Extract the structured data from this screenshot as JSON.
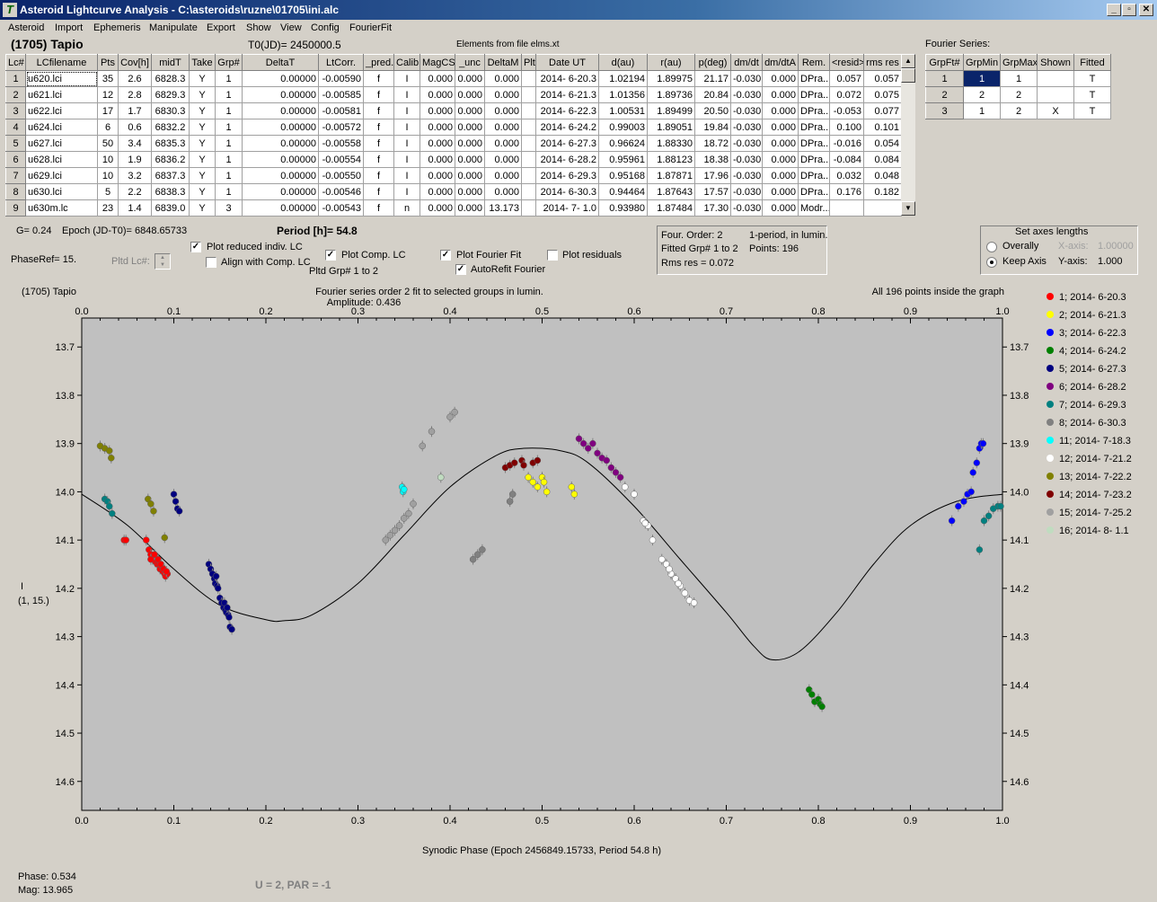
{
  "window": {
    "title": "Asteroid Lightcurve Analysis - C:\\asteroids\\ruzne\\01705\\ini.alc",
    "min": "_",
    "max": "▫",
    "close": "✕"
  },
  "menu": [
    "Asteroid",
    "Import",
    "Ephemeris",
    "Manipulate",
    "Export",
    "Show",
    "View",
    "Config",
    "FourierFit"
  ],
  "header": {
    "object": "(1705) Tapio",
    "t0": "T0(JD)= 2450000.5",
    "elements": "Elements from file elms.xt",
    "fourier_title": "Fourier Series:"
  },
  "lc_table": {
    "columns": [
      "Lc#",
      "LCfilename",
      "Pts",
      "Cov[h]",
      "midT",
      "Take",
      "Grp#",
      "DeltaT",
      "LtCorr.",
      "_pred.",
      "Calib.",
      "MagCS",
      "_unc",
      "DeltaM",
      "Plt",
      "Date UT",
      "d(au)",
      "r(au)",
      "p(deg)",
      "dm/dt",
      "dm/dtA",
      "Rem.",
      "<resid>",
      "rms res"
    ],
    "rows": [
      [
        "1",
        "u620.lci",
        "35",
        "2.6",
        "6828.3",
        "Y",
        "1",
        "0.00000",
        "-0.00590",
        "f",
        "I",
        "0.000",
        "0.000",
        "0.000",
        "",
        "2014- 6-20.3",
        "1.02194",
        "1.89975",
        "21.17",
        "-0.030",
        "0.000",
        "DPra...",
        "0.057",
        "0.057"
      ],
      [
        "2",
        "u621.lci",
        "12",
        "2.8",
        "6829.3",
        "Y",
        "1",
        "0.00000",
        "-0.00585",
        "f",
        "I",
        "0.000",
        "0.000",
        "0.000",
        "",
        "2014- 6-21.3",
        "1.01356",
        "1.89736",
        "20.84",
        "-0.030",
        "0.000",
        "DPra...",
        "0.072",
        "0.075"
      ],
      [
        "3",
        "u622.lci",
        "17",
        "1.7",
        "6830.3",
        "Y",
        "1",
        "0.00000",
        "-0.00581",
        "f",
        "I",
        "0.000",
        "0.000",
        "0.000",
        "",
        "2014- 6-22.3",
        "1.00531",
        "1.89499",
        "20.50",
        "-0.030",
        "0.000",
        "DPra...",
        "-0.053",
        "0.077"
      ],
      [
        "4",
        "u624.lci",
        "6",
        "0.6",
        "6832.2",
        "Y",
        "1",
        "0.00000",
        "-0.00572",
        "f",
        "I",
        "0.000",
        "0.000",
        "0.000",
        "",
        "2014- 6-24.2",
        "0.99003",
        "1.89051",
        "19.84",
        "-0.030",
        "0.000",
        "DPra...",
        "0.100",
        "0.101"
      ],
      [
        "5",
        "u627.lci",
        "50",
        "3.4",
        "6835.3",
        "Y",
        "1",
        "0.00000",
        "-0.00558",
        "f",
        "I",
        "0.000",
        "0.000",
        "0.000",
        "",
        "2014- 6-27.3",
        "0.96624",
        "1.88330",
        "18.72",
        "-0.030",
        "0.000",
        "DPra...",
        "-0.016",
        "0.054"
      ],
      [
        "6",
        "u628.lci",
        "10",
        "1.9",
        "6836.2",
        "Y",
        "1",
        "0.00000",
        "-0.00554",
        "f",
        "I",
        "0.000",
        "0.000",
        "0.000",
        "",
        "2014- 6-28.2",
        "0.95961",
        "1.88123",
        "18.38",
        "-0.030",
        "0.000",
        "DPra...",
        "-0.084",
        "0.084"
      ],
      [
        "7",
        "u629.lci",
        "10",
        "3.2",
        "6837.3",
        "Y",
        "1",
        "0.00000",
        "-0.00550",
        "f",
        "I",
        "0.000",
        "0.000",
        "0.000",
        "",
        "2014- 6-29.3",
        "0.95168",
        "1.87871",
        "17.96",
        "-0.030",
        "0.000",
        "DPra...",
        "0.032",
        "0.048"
      ],
      [
        "8",
        "u630.lci",
        "5",
        "2.2",
        "6838.3",
        "Y",
        "1",
        "0.00000",
        "-0.00546",
        "f",
        "I",
        "0.000",
        "0.000",
        "0.000",
        "",
        "2014- 6-30.3",
        "0.94464",
        "1.87643",
        "17.57",
        "-0.030",
        "0.000",
        "DPra...",
        "0.176",
        "0.182"
      ],
      [
        "9",
        "u630m.lc",
        "23",
        "1.4",
        "6839.0",
        "Y",
        "3",
        "0.00000",
        "-0.00543",
        "f",
        "n",
        "0.000",
        "0.000",
        "13.173",
        "",
        "2014- 7- 1.0",
        "0.93980",
        "1.87484",
        "17.30",
        "-0.030",
        "0.000",
        "Modr...",
        "",
        ""
      ]
    ]
  },
  "fourier_table": {
    "columns": [
      "GrpFt#",
      "GrpMin",
      "GrpMax",
      "Shown",
      "Fitted"
    ],
    "rows": [
      [
        "1",
        "1",
        "1",
        "",
        "T"
      ],
      [
        "2",
        "2",
        "2",
        "",
        "T"
      ],
      [
        "3",
        "1",
        "2",
        "X",
        "T"
      ]
    ]
  },
  "controls": {
    "g": "G= 0.24",
    "epoch": "Epoch (JD-T0)= 6848.65733",
    "period": "Period [h]= 54.8",
    "phaseref": "PhaseRef= 15.",
    "pltdlc": "Pltd Lc#:",
    "plot_reduced": "Plot reduced indiv. LC",
    "align": "Align with Comp. LC",
    "plot_comp": "Plot Comp. LC",
    "pltdgrp": "Pltd Grp#  1   to   2",
    "plot_fourier": "Plot Fourier Fit",
    "autorefit": "AutoRefit Fourier",
    "plot_resid": "Plot residuals",
    "checks": {
      "plot_reduced": true,
      "align": false,
      "plot_comp": true,
      "plot_fourier": true,
      "autorefit": true,
      "plot_resid": false
    }
  },
  "fourier_info": {
    "order": "Four. Order:  2",
    "mode": "1-period, in lumin.",
    "fitted": "Fitted Grp# 1 to 2",
    "points": "Points: 196",
    "rms": "Rms res     = 0.072"
  },
  "axes_box": {
    "title": "Set axes lengths",
    "overally": "Overally",
    "keep": "Keep Axis",
    "xaxis": "X-axis:",
    "xval": "1.00000",
    "yaxis": "Y-axis:",
    "yval": "1.000",
    "selected": "keep"
  },
  "plot": {
    "name": "(1705) Tapio",
    "fit_title": "Fourier series order 2 fit to selected groups in lumin.",
    "amplitude": "Amplitude: 0.436",
    "inside": "All 196 points inside the graph",
    "ylabel": "I",
    "ylabel2": "(1, 15.)",
    "xlabel": "Synodic Phase (Epoch 2456849.15733, Period 54.8 h)",
    "phase": "Phase:  0.534",
    "mag": "Mag:   13.965",
    "upar": "U = 2, PAR = -1"
  },
  "chart_data": {
    "type": "scatter",
    "xlim": [
      0,
      1
    ],
    "ylim": [
      14.66,
      13.64
    ],
    "xticks": [
      "0.0",
      "0.1",
      "0.2",
      "0.3",
      "0.4",
      "0.5",
      "0.6",
      "0.7",
      "0.8",
      "0.9",
      "1.0"
    ],
    "yticks": [
      "13.7",
      "13.8",
      "13.9",
      "14.0",
      "14.1",
      "14.2",
      "14.3",
      "14.4",
      "14.5",
      "14.6"
    ],
    "background": "#c0c0c0",
    "fourier_curve": [
      [
        0,
        14.005
      ],
      [
        0.05,
        14.07
      ],
      [
        0.1,
        14.16
      ],
      [
        0.15,
        14.235
      ],
      [
        0.2,
        14.265
      ],
      [
        0.22,
        14.267
      ],
      [
        0.25,
        14.255
      ],
      [
        0.3,
        14.19
      ],
      [
        0.35,
        14.09
      ],
      [
        0.4,
        13.99
      ],
      [
        0.45,
        13.925
      ],
      [
        0.48,
        13.91
      ],
      [
        0.52,
        13.915
      ],
      [
        0.55,
        13.94
      ],
      [
        0.6,
        14.03
      ],
      [
        0.65,
        14.14
      ],
      [
        0.7,
        14.25
      ],
      [
        0.73,
        14.32
      ],
      [
        0.75,
        14.348
      ],
      [
        0.78,
        14.33
      ],
      [
        0.82,
        14.25
      ],
      [
        0.86,
        14.15
      ],
      [
        0.9,
        14.07
      ],
      [
        0.95,
        14.02
      ],
      [
        1.0,
        14.005
      ]
    ],
    "series": [
      {
        "name": "1; 2014- 6-20.3",
        "color": "#ff0000",
        "points": [
          [
            0.07,
            14.1
          ],
          [
            0.073,
            14.12
          ],
          [
            0.075,
            14.13
          ],
          [
            0.077,
            14.14
          ],
          [
            0.078,
            14.135
          ],
          [
            0.08,
            14.145
          ],
          [
            0.082,
            14.15
          ],
          [
            0.084,
            14.15
          ],
          [
            0.085,
            14.16
          ],
          [
            0.087,
            14.155
          ],
          [
            0.088,
            14.165
          ],
          [
            0.09,
            14.17
          ],
          [
            0.091,
            14.175
          ],
          [
            0.093,
            14.17
          ],
          [
            0.075,
            14.14
          ],
          [
            0.079,
            14.13
          ],
          [
            0.083,
            14.14
          ],
          [
            0.086,
            14.15
          ],
          [
            0.089,
            14.16
          ],
          [
            0.092,
            14.165
          ],
          [
            0.046,
            14.1
          ],
          [
            0.048,
            14.1
          ]
        ]
      },
      {
        "name": "2; 2014- 6-21.3",
        "color": "#ffff00",
        "points": [
          [
            0.485,
            13.97
          ],
          [
            0.49,
            13.98
          ],
          [
            0.495,
            13.99
          ],
          [
            0.5,
            13.97
          ],
          [
            0.502,
            13.98
          ],
          [
            0.505,
            14.0
          ],
          [
            0.532,
            13.99
          ],
          [
            0.535,
            14.005
          ]
        ]
      },
      {
        "name": "3; 2014- 6-22.3",
        "color": "#0000ff",
        "points": [
          [
            0.945,
            14.06
          ],
          [
            0.952,
            14.03
          ],
          [
            0.958,
            14.02
          ],
          [
            0.962,
            14.005
          ],
          [
            0.966,
            14.0
          ],
          [
            0.968,
            13.96
          ],
          [
            0.972,
            13.94
          ],
          [
            0.975,
            13.91
          ],
          [
            0.977,
            13.9
          ],
          [
            0.979,
            13.9
          ]
        ]
      },
      {
        "name": "4; 2014- 6-24.2",
        "color": "#008000",
        "points": [
          [
            0.79,
            14.41
          ],
          [
            0.793,
            14.42
          ],
          [
            0.796,
            14.435
          ],
          [
            0.8,
            14.43
          ],
          [
            0.802,
            14.44
          ],
          [
            0.804,
            14.445
          ]
        ]
      },
      {
        "name": "5; 2014- 6-27.3",
        "color": "#000080",
        "points": [
          [
            0.1,
            14.005
          ],
          [
            0.102,
            14.02
          ],
          [
            0.104,
            14.035
          ],
          [
            0.106,
            14.04
          ],
          [
            0.138,
            14.15
          ],
          [
            0.14,
            14.16
          ],
          [
            0.142,
            14.17
          ],
          [
            0.144,
            14.18
          ],
          [
            0.145,
            14.19
          ],
          [
            0.147,
            14.195
          ],
          [
            0.148,
            14.2
          ],
          [
            0.15,
            14.22
          ],
          [
            0.152,
            14.23
          ],
          [
            0.154,
            14.24
          ],
          [
            0.156,
            14.245
          ],
          [
            0.157,
            14.25
          ],
          [
            0.159,
            14.255
          ],
          [
            0.16,
            14.26
          ],
          [
            0.161,
            14.28
          ],
          [
            0.163,
            14.285
          ],
          [
            0.155,
            14.23
          ],
          [
            0.158,
            14.24
          ],
          [
            0.146,
            14.175
          ]
        ]
      },
      {
        "name": "6; 2014- 6-28.2",
        "color": "#800080",
        "points": [
          [
            0.54,
            13.89
          ],
          [
            0.545,
            13.9
          ],
          [
            0.55,
            13.91
          ],
          [
            0.555,
            13.9
          ],
          [
            0.56,
            13.92
          ],
          [
            0.565,
            13.93
          ],
          [
            0.57,
            13.935
          ],
          [
            0.575,
            13.95
          ],
          [
            0.58,
            13.96
          ],
          [
            0.585,
            13.97
          ]
        ]
      },
      {
        "name": "7; 2014- 6-29.3",
        "color": "#008080",
        "points": [
          [
            0.025,
            14.015
          ],
          [
            0.028,
            14.02
          ],
          [
            0.03,
            14.03
          ],
          [
            0.033,
            14.045
          ],
          [
            0.975,
            14.12
          ],
          [
            0.98,
            14.06
          ],
          [
            0.985,
            14.05
          ],
          [
            0.99,
            14.035
          ],
          [
            0.995,
            14.03
          ],
          [
            0.998,
            14.03
          ]
        ]
      },
      {
        "name": "8; 2014- 6-30.3",
        "color": "#808080",
        "points": [
          [
            0.425,
            14.14
          ],
          [
            0.43,
            14.13
          ],
          [
            0.435,
            14.12
          ],
          [
            0.465,
            14.02
          ],
          [
            0.468,
            14.005
          ]
        ]
      },
      {
        "name": "11; 2014- 7-18.3",
        "color": "#00ffff",
        "points": [
          [
            0.348,
            13.99
          ],
          [
            0.349,
            14.0
          ],
          [
            0.35,
            13.995
          ]
        ]
      },
      {
        "name": "12; 2014- 7-21.2",
        "color": "#ffffff",
        "points": [
          [
            0.59,
            13.99
          ],
          [
            0.6,
            14.005
          ],
          [
            0.61,
            14.06
          ],
          [
            0.615,
            14.07
          ],
          [
            0.62,
            14.1
          ],
          [
            0.63,
            14.14
          ],
          [
            0.635,
            14.15
          ],
          [
            0.64,
            14.17
          ],
          [
            0.645,
            14.18
          ],
          [
            0.65,
            14.195
          ],
          [
            0.655,
            14.21
          ],
          [
            0.66,
            14.225
          ],
          [
            0.665,
            14.23
          ],
          [
            0.612,
            14.065
          ],
          [
            0.638,
            14.16
          ],
          [
            0.648,
            14.19
          ]
        ]
      },
      {
        "name": "13; 2014- 7-22.2",
        "color": "#808000",
        "points": [
          [
            0.02,
            13.905
          ],
          [
            0.025,
            13.91
          ],
          [
            0.03,
            13.915
          ],
          [
            0.032,
            13.93
          ],
          [
            0.072,
            14.015
          ],
          [
            0.075,
            14.025
          ],
          [
            0.078,
            14.04
          ],
          [
            0.09,
            14.095
          ]
        ]
      },
      {
        "name": "14; 2014- 7-23.2",
        "color": "#800000",
        "points": [
          [
            0.46,
            13.95
          ],
          [
            0.465,
            13.945
          ],
          [
            0.47,
            13.94
          ],
          [
            0.478,
            13.935
          ],
          [
            0.48,
            13.945
          ],
          [
            0.49,
            13.94
          ],
          [
            0.495,
            13.935
          ]
        ]
      },
      {
        "name": "15; 2014- 7-25.2",
        "color": "#a0a0a0",
        "points": [
          [
            0.33,
            14.1
          ],
          [
            0.335,
            14.09
          ],
          [
            0.34,
            14.08
          ],
          [
            0.345,
            14.07
          ],
          [
            0.35,
            14.055
          ],
          [
            0.36,
            14.025
          ],
          [
            0.355,
            14.045
          ],
          [
            0.37,
            13.905
          ],
          [
            0.38,
            13.875
          ],
          [
            0.4,
            13.845
          ],
          [
            0.405,
            13.835
          ]
        ]
      },
      {
        "name": "16; 2014- 8- 1.1",
        "color": "#c0dcc0",
        "points": [
          [
            0.39,
            13.97
          ]
        ]
      }
    ]
  }
}
